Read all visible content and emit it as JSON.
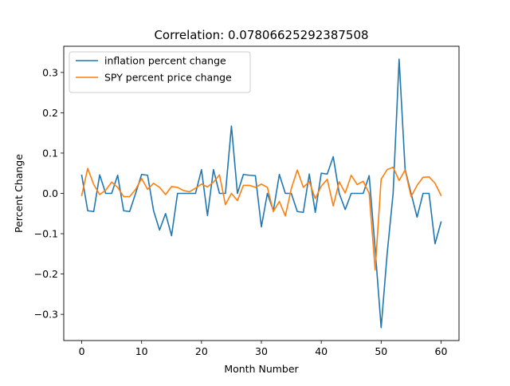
{
  "chart_data": {
    "type": "line",
    "title": "Correlation: 0.07806625292387508",
    "xlabel": "Month Number",
    "ylabel": "Percent Change",
    "xlim": [
      -3,
      63
    ],
    "ylim": [
      -0.365,
      0.365
    ],
    "xticks": [
      0,
      10,
      20,
      30,
      40,
      50,
      60
    ],
    "yticks": [
      -0.3,
      -0.2,
      -0.1,
      0.0,
      0.1,
      0.2,
      0.3
    ],
    "ytick_labels": [
      "−0.3",
      "−0.2",
      "−0.1",
      "0.0",
      "0.1",
      "0.2",
      "0.3"
    ],
    "grid": false,
    "legend_position": "top-left",
    "x": [
      0,
      1,
      2,
      3,
      4,
      5,
      6,
      7,
      8,
      9,
      10,
      11,
      12,
      13,
      14,
      15,
      16,
      17,
      18,
      19,
      20,
      21,
      22,
      23,
      24,
      25,
      26,
      27,
      28,
      29,
      30,
      31,
      32,
      33,
      34,
      35,
      36,
      37,
      38,
      39,
      40,
      41,
      42,
      43,
      44,
      45,
      46,
      47,
      48,
      49,
      50,
      51,
      52,
      53,
      54,
      55,
      56,
      57,
      58,
      59,
      60
    ],
    "series": [
      {
        "name": "inflation percent change",
        "color": "#1f77b4",
        "values": [
          0.045,
          -0.043,
          -0.045,
          0.046,
          0.0,
          0.0,
          0.045,
          -0.043,
          -0.045,
          0.0,
          0.047,
          0.045,
          -0.043,
          -0.091,
          -0.05,
          -0.105,
          0.0,
          0.0,
          0.0,
          0.0,
          0.059,
          -0.055,
          0.059,
          0.0,
          0.0,
          0.167,
          0.0,
          0.047,
          0.045,
          0.044,
          -0.083,
          0.0,
          -0.043,
          0.047,
          0.0,
          0.0,
          -0.045,
          -0.047,
          0.048,
          -0.047,
          0.05,
          0.048,
          0.091,
          0.0,
          -0.04,
          0.0,
          0.0,
          0.0,
          0.044,
          -0.138,
          -0.333,
          -0.15,
          0.0,
          0.333,
          0.06,
          0.0,
          -0.059,
          0.0,
          0.0,
          -0.125,
          -0.071
        ]
      },
      {
        "name": "SPY percent price change",
        "color": "#ff7f0e",
        "values": [
          -0.005,
          0.062,
          0.022,
          -0.003,
          0.008,
          0.028,
          0.015,
          -0.008,
          -0.008,
          0.01,
          0.037,
          0.01,
          0.025,
          0.015,
          -0.003,
          0.017,
          0.015,
          0.007,
          0.004,
          0.013,
          0.023,
          0.016,
          0.028,
          0.046,
          -0.028,
          0.0,
          -0.018,
          0.02,
          0.02,
          0.015,
          0.023,
          0.015,
          -0.045,
          -0.02,
          -0.056,
          0.012,
          0.058,
          0.015,
          0.029,
          -0.013,
          0.018,
          0.035,
          -0.031,
          0.029,
          0.001,
          0.045,
          0.022,
          0.03,
          0.0,
          -0.19,
          0.035,
          0.059,
          0.065,
          0.032,
          0.058,
          -0.008,
          0.02,
          0.04,
          0.041,
          0.025,
          -0.005
        ]
      }
    ]
  }
}
